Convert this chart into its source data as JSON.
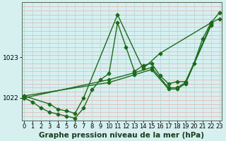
{
  "bg_color": "#d6f0f0",
  "grid_h_color": "#f0aaaa",
  "grid_v_color": "#b8d8d8",
  "line_color": "#1a6b1a",
  "marker": "D",
  "markersize": 2.5,
  "linewidth": 1.0,
  "xlabel": "Graphe pression niveau de la mer (hPa)",
  "xlabel_fontsize": 7.5,
  "ylabel_fontsize": 6.5,
  "tick_fontsize": 6,
  "ylim": [
    1021.45,
    1024.35
  ],
  "xlim": [
    -0.3,
    23.3
  ],
  "yticks": [
    1022,
    1023
  ],
  "xticks": [
    0,
    1,
    2,
    3,
    4,
    5,
    6,
    7,
    8,
    9,
    10,
    11,
    12,
    13,
    14,
    15,
    16,
    17,
    18,
    19,
    20,
    21,
    22,
    23
  ],
  "series": [
    {
      "x": [
        0,
        1,
        2,
        3,
        4,
        5,
        6,
        7,
        8,
        9,
        10,
        11,
        12,
        13,
        14,
        15,
        16,
        17,
        18,
        19,
        20,
        21,
        22,
        23
      ],
      "y": [
        1022.0,
        1021.9,
        1021.75,
        1021.65,
        1021.6,
        1021.55,
        1021.5,
        1021.75,
        1022.2,
        1022.45,
        1022.6,
        1023.85,
        1023.25,
        1022.65,
        1022.8,
        1022.85,
        1022.55,
        1022.35,
        1022.4,
        1022.4,
        1022.85,
        1023.45,
        1023.85,
        1023.95
      ]
    },
    {
      "x": [
        0,
        3,
        4,
        5,
        6,
        7,
        11,
        14,
        16,
        22,
        23
      ],
      "y": [
        1022.05,
        1021.85,
        1021.72,
        1021.68,
        1021.62,
        1022.0,
        1024.05,
        1022.72,
        1023.1,
        1023.85,
        1024.1
      ]
    },
    {
      "x": [
        0,
        10,
        13,
        15,
        17,
        18,
        19,
        22
      ],
      "y": [
        1022.0,
        1022.45,
        1022.62,
        1022.75,
        1022.25,
        1022.25,
        1022.38,
        1023.82
      ]
    },
    {
      "x": [
        0,
        10,
        13,
        15,
        17,
        18,
        19,
        22
      ],
      "y": [
        1022.05,
        1022.38,
        1022.57,
        1022.7,
        1022.22,
        1022.22,
        1022.35,
        1023.78
      ]
    }
  ]
}
